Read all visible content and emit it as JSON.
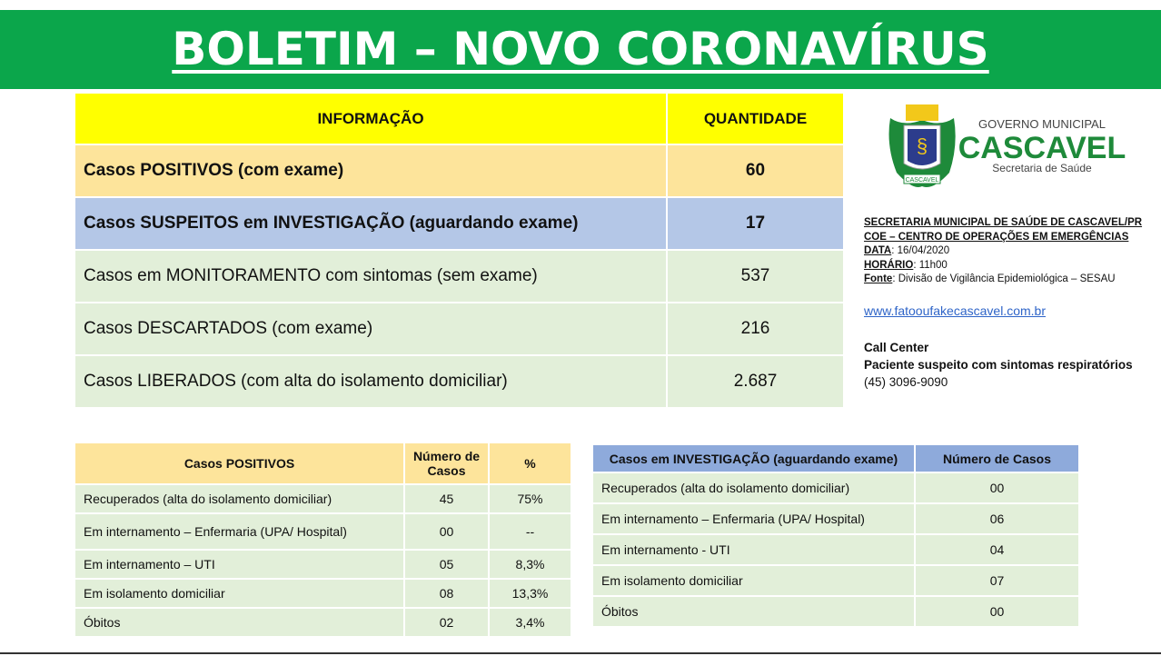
{
  "title": "BOLETIM – NOVO CORONAVÍRUS",
  "main_table": {
    "headers": [
      "INFORMAÇÃO",
      "QUANTIDADE"
    ],
    "rows": [
      {
        "label": "Casos POSITIVOS (com exame)",
        "value": "60"
      },
      {
        "label": "Casos SUSPEITOS em INVESTIGAÇÃO (aguardando exame)",
        "value": "17"
      },
      {
        "label": "Casos em MONITORAMENTO com sintomas (sem exame)",
        "value": "537"
      },
      {
        "label": "Casos DESCARTADOS (com exame)",
        "value": "216"
      },
      {
        "label": "Casos LIBERADOS (com alta do isolamento domiciliar)",
        "value": "2.687"
      }
    ]
  },
  "logo": {
    "line1": "GOVERNO MUNICIPAL",
    "line2": "CASCAVEL",
    "line3": "Secretaria de Saúde",
    "crest_label": "CASCAVEL"
  },
  "info": {
    "org": "SECRETARIA MUNICIPAL DE SAÚDE DE CASCAVEL/PR",
    "coe": "COE – CENTRO DE OPERAÇÕES EM EMERGÊNCIAS",
    "date_label": "DATA",
    "date": ": 16/04/2020",
    "time_label": "HORÁRIO",
    "time": ": 11h00",
    "source_label": "Fonte",
    "source": ": Divisão de Vigilância Epidemiológica – SESAU"
  },
  "link": "www.fatooufakecascavel.com.br",
  "call_center": {
    "title": "Call Center",
    "subtitle": "Paciente suspeito com sintomas respiratórios",
    "phone": "(45) 3096-9090"
  },
  "positive_table": {
    "headers": [
      "Casos POSITIVOS",
      "Número de Casos",
      "%"
    ],
    "rows": [
      [
        "Recuperados (alta do isolamento domiciliar)",
        "45",
        "75%"
      ],
      [
        "Em internamento – Enfermaria (UPA/ Hospital)",
        "00",
        "--"
      ],
      [
        "Em internamento – UTI",
        "05",
        "8,3%"
      ],
      [
        "Em isolamento domiciliar",
        "08",
        "13,3%"
      ],
      [
        "Óbitos",
        "02",
        "3,4%"
      ]
    ]
  },
  "investigation_table": {
    "headers": [
      "Casos em INVESTIGAÇÃO (aguardando exame)",
      "Número de Casos"
    ],
    "rows": [
      [
        "Recuperados (alta do isolamento domiciliar)",
        "00"
      ],
      [
        "Em internamento – Enfermaria (UPA/ Hospital)",
        "06"
      ],
      [
        "Em internamento - UTI",
        "04"
      ],
      [
        "Em isolamento domiciliar",
        "07"
      ],
      [
        "Óbitos",
        "00"
      ]
    ]
  },
  "colors": {
    "band": "#0ba64b",
    "yellow": "#ffff00",
    "positive": "#fde49b",
    "suspect": "#b4c7e7",
    "row": "#e2efd9",
    "inv_header": "#8eaadb"
  }
}
